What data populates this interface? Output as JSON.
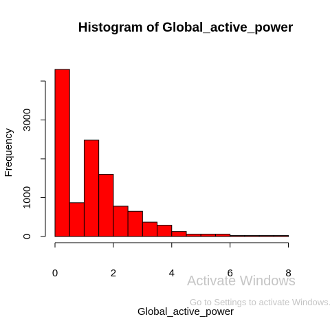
{
  "chart_data": {
    "type": "bar",
    "title": "Histogram of Global_active_power",
    "xlabel": "Global_active_power",
    "ylabel": "Frequency",
    "bins": [
      {
        "start": 0.0,
        "end": 0.5,
        "count": 4300
      },
      {
        "start": 0.5,
        "end": 1.0,
        "count": 870
      },
      {
        "start": 1.0,
        "end": 1.5,
        "count": 2480
      },
      {
        "start": 1.5,
        "end": 2.0,
        "count": 1600
      },
      {
        "start": 2.0,
        "end": 2.5,
        "count": 780
      },
      {
        "start": 2.5,
        "end": 3.0,
        "count": 650
      },
      {
        "start": 3.0,
        "end": 3.5,
        "count": 370
      },
      {
        "start": 3.5,
        "end": 4.0,
        "count": 290
      },
      {
        "start": 4.0,
        "end": 4.5,
        "count": 130
      },
      {
        "start": 4.5,
        "end": 5.0,
        "count": 60
      },
      {
        "start": 5.0,
        "end": 5.5,
        "count": 60
      },
      {
        "start": 5.5,
        "end": 6.0,
        "count": 60
      },
      {
        "start": 6.0,
        "end": 6.5,
        "count": 25
      },
      {
        "start": 6.5,
        "end": 7.0,
        "count": 25
      },
      {
        "start": 7.0,
        "end": 7.5,
        "count": 25
      },
      {
        "start": 7.5,
        "end": 8.0,
        "count": 25
      }
    ],
    "xlim": [
      0,
      9
    ],
    "ylim": [
      0,
      4300
    ],
    "xticks": [
      0,
      2,
      4,
      6,
      8
    ],
    "yticks": [
      0,
      1000,
      2000,
      3000,
      4000
    ],
    "ytick_labels": [
      "0",
      "1000",
      "",
      "3000",
      ""
    ],
    "bar_color": "#ff0000",
    "grid": false,
    "legend": "none"
  },
  "watermark": {
    "title": "Activate Windows",
    "subtitle": "Go to Settings to activate Windows."
  }
}
